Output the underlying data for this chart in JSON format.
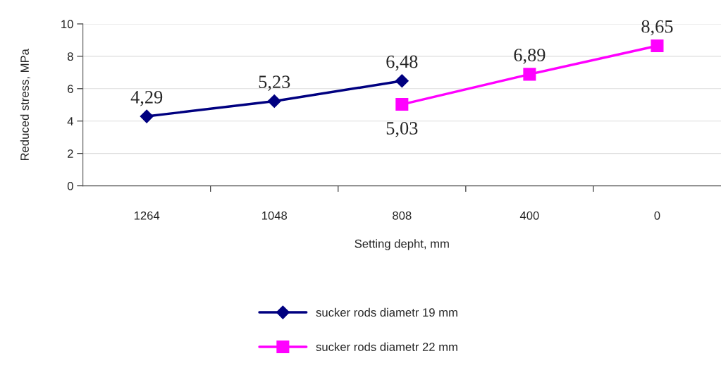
{
  "chart_data": {
    "type": "line",
    "xlabel": "Setting depht, mm",
    "ylabel": "Reduced stress, MPa",
    "categories": [
      "1264",
      "1048",
      "808",
      "400",
      "0"
    ],
    "series": [
      {
        "name": "sucker rods diametr 19 mm",
        "color": "#000080",
        "marker": "diamond",
        "values": [
          4.29,
          5.23,
          6.48,
          null,
          null
        ],
        "value_labels": [
          "4,29",
          "5,23",
          "6,48",
          null,
          null
        ]
      },
      {
        "name": "sucker rods diametr 22 mm",
        "color": "#ff00ff",
        "marker": "square",
        "values": [
          null,
          null,
          5.03,
          6.89,
          8.65
        ],
        "value_labels": [
          null,
          null,
          "5,03",
          "6,89",
          "8,65"
        ]
      }
    ],
    "ylim": [
      0,
      10
    ],
    "yticks": [
      0,
      2,
      4,
      6,
      8,
      10
    ],
    "grid": "y",
    "legend": "bottom"
  }
}
